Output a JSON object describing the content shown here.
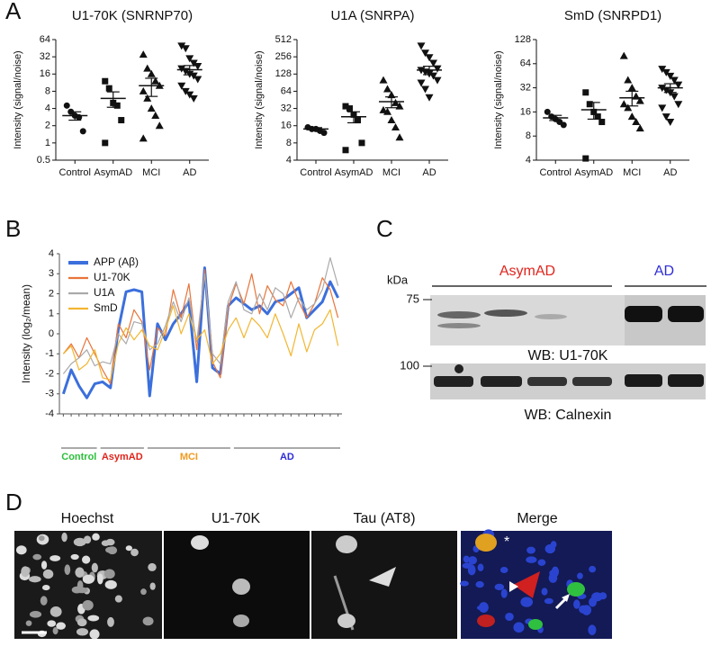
{
  "panels": {
    "a": "A",
    "b": "B",
    "c": "C",
    "d": "D"
  },
  "chart_data": [
    {
      "type": "dotplot",
      "title": "U1-70K (SNRNP70)",
      "y_label": "Intensity (signal/noise)",
      "categories": [
        "Control",
        "AsymAD",
        "MCI",
        "AD"
      ],
      "markers": [
        "circle",
        "square",
        "triangle",
        "triangle-down"
      ],
      "color": "#111111",
      "points": [
        [
          4.5,
          3.5,
          3,
          2.8,
          1.6
        ],
        [
          12,
          9,
          5,
          4.5,
          2.5,
          1
        ],
        [
          35,
          20,
          16,
          12,
          10,
          8,
          6,
          4,
          3,
          2,
          1.2
        ],
        [
          50,
          45,
          30,
          25,
          22,
          20,
          18,
          16,
          15,
          13,
          10,
          8,
          7,
          6
        ]
      ],
      "means": [
        3,
        6,
        10,
        19
      ],
      "sem": [
        0.5,
        1.8,
        3.5,
        3.5
      ],
      "log_scale": true,
      "ylim": [
        0.5,
        64
      ],
      "yticks": [
        0.5,
        1,
        2,
        4,
        8,
        16,
        32,
        64
      ]
    },
    {
      "type": "dotplot",
      "title": "U1A (SNRPA)",
      "y_label": "Intensity (signal/noise)",
      "categories": [
        "Control",
        "AsymAD",
        "MCI",
        "AD"
      ],
      "markers": [
        "circle",
        "square",
        "triangle",
        "triangle-down"
      ],
      "color": "#111111",
      "points": [
        [
          15,
          14,
          14,
          13,
          12
        ],
        [
          35,
          32,
          25,
          20,
          8,
          6
        ],
        [
          100,
          70,
          55,
          40,
          35,
          30,
          28,
          20,
          15,
          10
        ],
        [
          400,
          300,
          250,
          200,
          160,
          150,
          140,
          130,
          120,
          100,
          90,
          70,
          50
        ]
      ],
      "means": [
        14,
        23,
        42,
        150
      ],
      "sem": [
        0.8,
        5,
        9,
        25
      ],
      "log_scale": true,
      "ylim": [
        4,
        512
      ],
      "yticks": [
        4,
        8,
        16,
        32,
        64,
        128,
        256,
        512
      ]
    },
    {
      "type": "dotplot",
      "title": "SmD (SNRPD1)",
      "y_label": "Intensity (signal/noise)",
      "categories": [
        "Control",
        "AsymAD",
        "MCI",
        "AD"
      ],
      "markers": [
        "circle",
        "square",
        "triangle",
        "triangle-down"
      ],
      "color": "#111111",
      "points": [
        [
          16,
          14,
          13,
          12,
          11
        ],
        [
          28,
          20,
          16,
          14,
          12,
          4.2
        ],
        [
          80,
          40,
          32,
          25,
          22,
          20,
          18,
          14,
          12,
          10
        ],
        [
          55,
          50,
          45,
          40,
          35,
          32,
          30,
          28,
          25,
          20,
          18,
          14,
          12
        ]
      ],
      "means": [
        13.5,
        17,
        24,
        32
      ],
      "sem": [
        1,
        4,
        5,
        4
      ],
      "log_scale": true,
      "ylim": [
        4,
        128
      ],
      "yticks": [
        4,
        8,
        16,
        32,
        64,
        128
      ]
    },
    {
      "type": "line",
      "y_label": "Intensity (log₂/mean)",
      "categories": [
        null,
        null,
        null,
        null,
        null,
        null,
        null,
        null,
        null,
        null,
        null,
        null,
        null,
        null,
        null,
        null,
        null,
        null,
        null,
        null,
        null,
        null,
        null,
        null,
        null,
        null,
        null,
        null,
        null,
        null,
        null,
        null,
        null,
        null,
        null,
        null
      ],
      "series": [
        {
          "name": "APP (Aβ)",
          "color": "#3b6fdc",
          "line_width": 3,
          "values": [
            -3.0,
            -1.8,
            -2.6,
            -3.2,
            -2.5,
            -2.4,
            -2.7,
            0.2,
            2.1,
            2.2,
            2.1,
            -3.1,
            0.5,
            -0.3,
            0.5,
            1.0,
            1.6,
            -2.4,
            3.3,
            -1.7,
            -2.0,
            1.4,
            1.8,
            1.5,
            1.2,
            1.4,
            1.0,
            1.6,
            1.7,
            2.0,
            2.3,
            0.8,
            1.2,
            1.6,
            2.6,
            1.8
          ]
        },
        {
          "name": "U1-70K",
          "color": "#e8743b",
          "line_width": 1.2,
          "values": [
            -1.0,
            -0.5,
            -1.2,
            -0.2,
            -1.0,
            -1.8,
            -2.5,
            0.5,
            -0.2,
            1.2,
            0.6,
            -1.8,
            0.3,
            -0.1,
            2.2,
            0.8,
            2.5,
            -0.8,
            3.2,
            -1.4,
            -2.2,
            1.3,
            2.5,
            1.5,
            3.0,
            1.0,
            2.4,
            1.7,
            1.4,
            2.6,
            1.6,
            0.8,
            1.5,
            2.8,
            2.2,
            0.8
          ]
        },
        {
          "name": "U1A",
          "color": "#aaaaaa",
          "line_width": 1.2,
          "values": [
            -2.0,
            -1.5,
            -1.2,
            -0.8,
            -1.6,
            -1.4,
            -1.5,
            0.0,
            -0.5,
            0.6,
            0.5,
            -0.8,
            -0.5,
            0.4,
            1.6,
            0.6,
            1.8,
            -0.4,
            3.0,
            -1.0,
            -1.5,
            1.6,
            2.6,
            1.2,
            1.0,
            2.0,
            1.2,
            2.3,
            2.0,
            0.8,
            1.8,
            1.2,
            1.5,
            2.2,
            3.8,
            2.4
          ]
        },
        {
          "name": "SmD",
          "color": "#f2b632",
          "line_width": 1.2,
          "values": [
            -1.0,
            -0.6,
            -1.8,
            -1.5,
            -0.8,
            -2.2,
            -2.3,
            -0.5,
            0.3,
            -0.3,
            0.2,
            -0.6,
            -0.8,
            0.2,
            1.4,
            0.0,
            1.0,
            -0.3,
            0.2,
            -1.5,
            -1.0,
            0.2,
            0.8,
            -0.2,
            0.8,
            0.4,
            -0.2,
            1.0,
            0.0,
            -1.1,
            0.5,
            -0.9,
            0.2,
            0.5,
            1.2,
            -0.6
          ]
        }
      ],
      "groups": [
        {
          "label": "Control",
          "color": "#2bbf3a"
        },
        {
          "label": "AsymAD",
          "color": "#e0241c"
        },
        {
          "label": "MCI",
          "color": "#f29a1f"
        },
        {
          "label": "AD",
          "color": "#2d2dd6"
        }
      ],
      "legend": "upper left",
      "ylim": [
        -4,
        4
      ],
      "yticks": [
        -4,
        -3,
        -2,
        -1,
        0,
        1,
        2,
        3,
        4
      ]
    }
  ],
  "blot": {
    "groups": [
      {
        "label": "AsymAD",
        "color": "#e0241c"
      },
      {
        "label": "AD",
        "color": "#2d2dd6"
      }
    ],
    "unit": "kDa",
    "markers": [
      "75",
      "100"
    ],
    "captions": [
      "WB: U1-70K",
      "WB: Calnexin"
    ]
  },
  "micrographs": {
    "channels": [
      "Hoechst",
      "U1-70K",
      "Tau (AT8)",
      "Merge"
    ],
    "annotation": "*"
  }
}
